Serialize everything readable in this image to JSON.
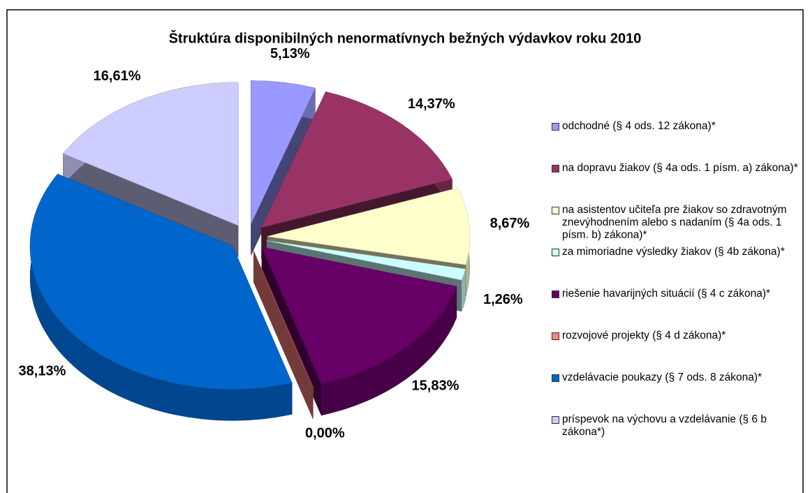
{
  "chart_data": {
    "type": "pie",
    "title": "Štruktúra disponibilných nenormatívnych bežných výdavkov roku 2010",
    "categories": [
      "odchodné (§ 4 ods. 12 zákona)*",
      "na dopravu žiakov (§ 4a ods. 1 písm. a) zákona)*",
      "na asistentov učiteľa pre žiakov so zdravotným znevýhodnením alebo s nadaním (§ 4a ods. 1 písm. b) zákona)*",
      "za mimoriadne výsledky žiakov (§ 4b zákona)*",
      "riešenie havarijných situácií (§ 4 c zákona)*",
      "rozvojové projekty (§ 4 d zákona)*",
      "vzdelávacie poukazy (§ 7 ods. 8 zákona)*",
      "príspevok na výchovu a vzdelávanie (§ 6 b zákona*)"
    ],
    "values": [
      5.13,
      14.37,
      8.67,
      1.26,
      15.83,
      0,
      38.13,
      16.61
    ],
    "value_labels": [
      "5,13%",
      "14,37%",
      "8,67%",
      "1,26%",
      "15,83%",
      "0,00%",
      "38,13%",
      "16,61%"
    ],
    "colors": [
      "#9999ff",
      "#993366",
      "#ffffcc",
      "#ccffff",
      "#660066",
      "#ff8080",
      "#0066cc",
      "#ccccff"
    ],
    "legend": "right"
  }
}
